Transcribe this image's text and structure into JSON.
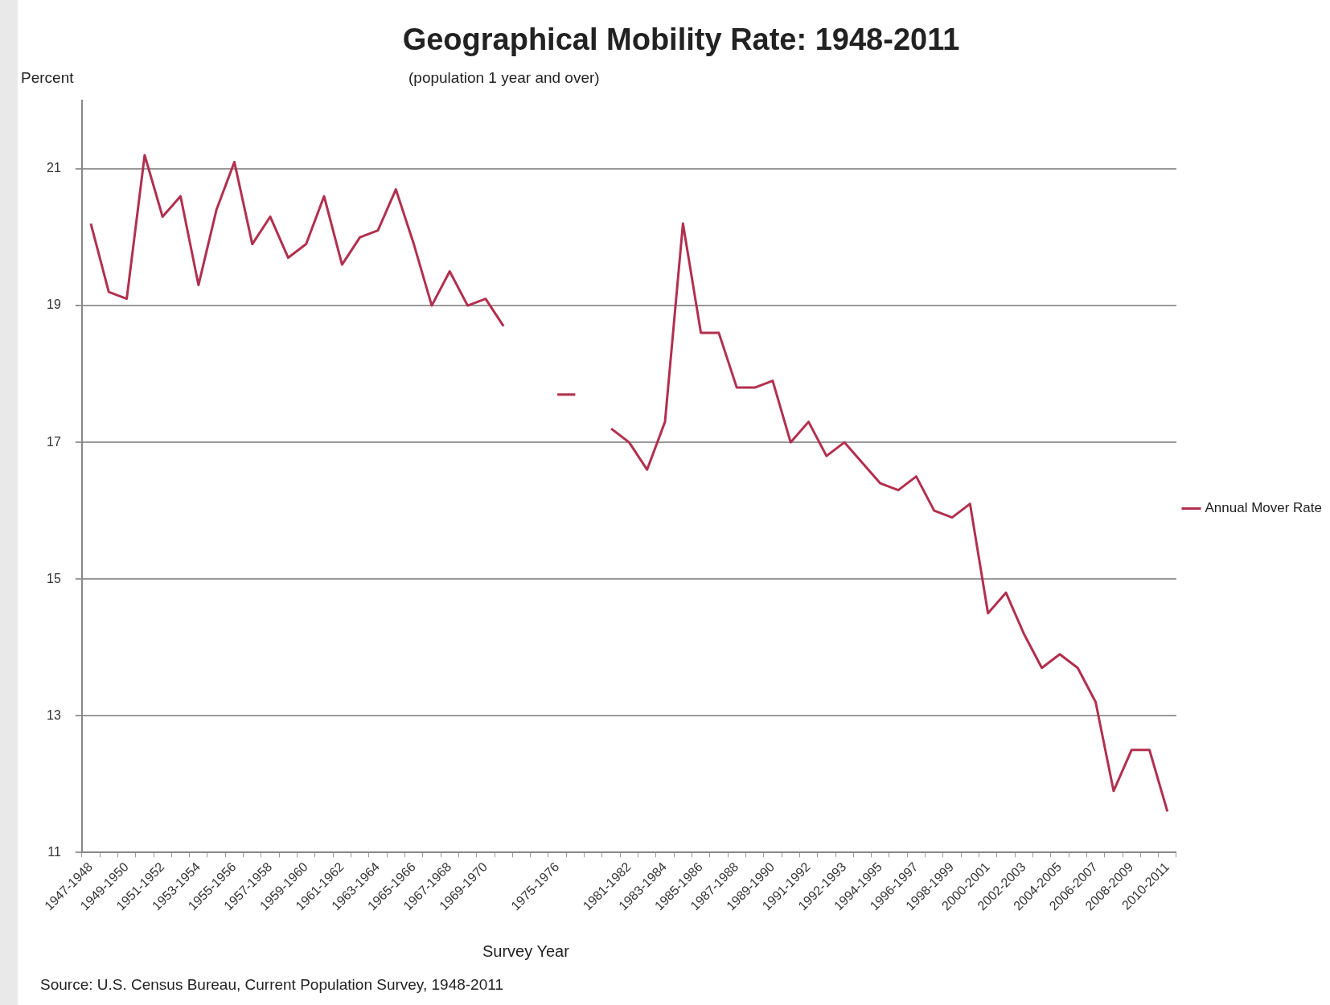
{
  "chart_data": {
    "type": "line",
    "title": "Geographical Mobility Rate: 1948-2011",
    "subtitle": "(population 1 year and over)",
    "ylabel": "Percent",
    "xlabel": "Survey Year",
    "annotations": [
      "Source: U.S. Census Bureau, Current Population Survey, 1948-2011"
    ],
    "categories": [
      "1947-1948",
      null,
      "1949-1950",
      null,
      "1951-1952",
      null,
      "1953-1954",
      null,
      "1955-1956",
      null,
      "1957-1958",
      null,
      "1959-1960",
      null,
      "1961-1962",
      null,
      "1963-1964",
      null,
      "1965-1966",
      null,
      "1967-1968",
      null,
      "1969-1970",
      null,
      null,
      null,
      "1975-1976",
      null,
      null,
      null,
      "1981-1982",
      null,
      "1983-1984",
      null,
      "1985-1986",
      null,
      "1987-1988",
      null,
      "1989-1990",
      null,
      "1991-1992",
      null,
      "1992-1993",
      null,
      "1994-1995",
      null,
      "1996-1997",
      null,
      "1998-1999",
      null,
      "2000-2001",
      null,
      "2002-2003",
      null,
      "2004-2005",
      null,
      "2006-2007",
      null,
      "2008-2009",
      null,
      "2010-2011"
    ],
    "series": [
      {
        "name": "Annual Mover Rate",
        "color": "#b22f4e",
        "values": [
          20.2,
          19.2,
          19.1,
          21.2,
          20.3,
          20.6,
          19.3,
          20.4,
          21.1,
          19.9,
          20.3,
          19.7,
          19.9,
          20.6,
          19.6,
          20.0,
          20.1,
          20.7,
          19.9,
          19.0,
          19.5,
          19.0,
          19.1,
          18.7,
          null,
          null,
          17.7,
          17.7,
          null,
          17.2,
          17.0,
          16.6,
          17.3,
          20.2,
          18.6,
          18.6,
          17.8,
          17.8,
          17.9,
          17.0,
          17.3,
          16.8,
          17.0,
          16.7,
          16.4,
          16.3,
          16.5,
          16.0,
          15.9,
          16.1,
          14.5,
          14.8,
          14.2,
          13.7,
          13.9,
          13.7,
          13.2,
          11.9,
          12.5,
          12.5,
          11.6
        ]
      }
    ],
    "ylim": [
      11,
      22
    ],
    "yticks": [
      11,
      13,
      15,
      17,
      19,
      21
    ],
    "grid": "y",
    "legend": "right",
    "marker": "none",
    "line_style": "solid"
  }
}
